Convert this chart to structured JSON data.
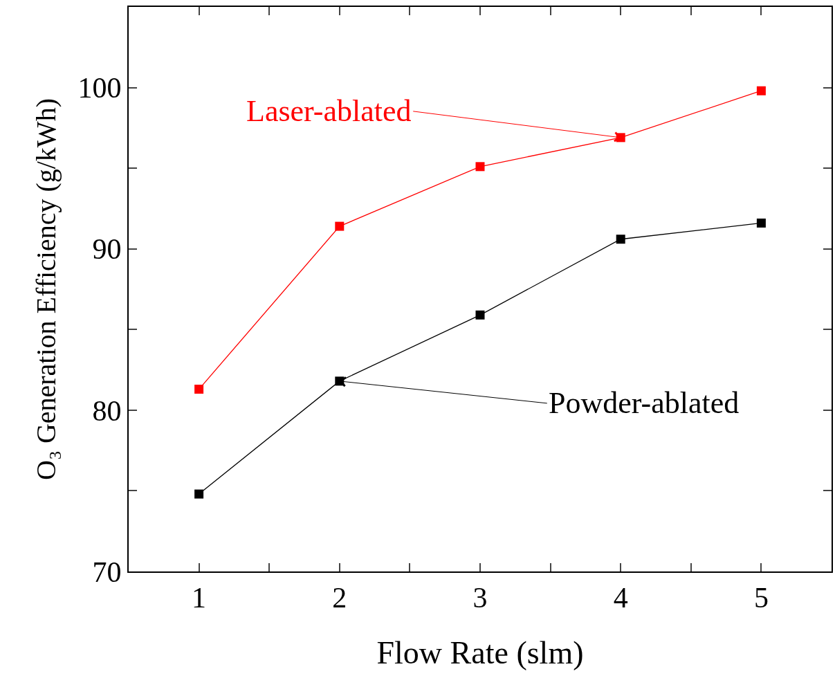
{
  "chart_data": {
    "type": "line",
    "xlabel": "Flow Rate (slm)",
    "ylabel": "O₃ Generation Efficiency (g/kWh)",
    "x": [
      1,
      2,
      3,
      4,
      5
    ],
    "series": [
      {
        "color": "#ff0000",
        "values": [
          81.3,
          91.4,
          95.1,
          96.9,
          99.8
        ]
      },
      {
        "color": "#000000",
        "values": [
          74.8,
          81.8,
          85.9,
          90.6,
          91.6
        ]
      }
    ],
    "annotations": [
      {
        "text": "Laser-ablated",
        "x": 4,
        "y": 96.9
      },
      {
        "text": "Powder-ablated",
        "x": 2,
        "y": 81.8
      }
    ],
    "xlim": [
      0.5,
      5.5
    ],
    "ylim": [
      70,
      105
    ],
    "xticks": [
      1,
      {
        "value": 1.5,
        "label": null
      },
      2,
      {
        "value": 2.5,
        "label": null
      },
      3,
      {
        "value": 3.5,
        "label": null
      },
      4,
      {
        "value": 4.5,
        "label": null
      },
      5
    ],
    "yticks": [
      70,
      {
        "value": 75,
        "label": null
      },
      80,
      {
        "value": 85,
        "label": null
      },
      90,
      {
        "value": 95,
        "label": null
      },
      100
    ],
    "marker": "square",
    "line_style": "solid"
  }
}
